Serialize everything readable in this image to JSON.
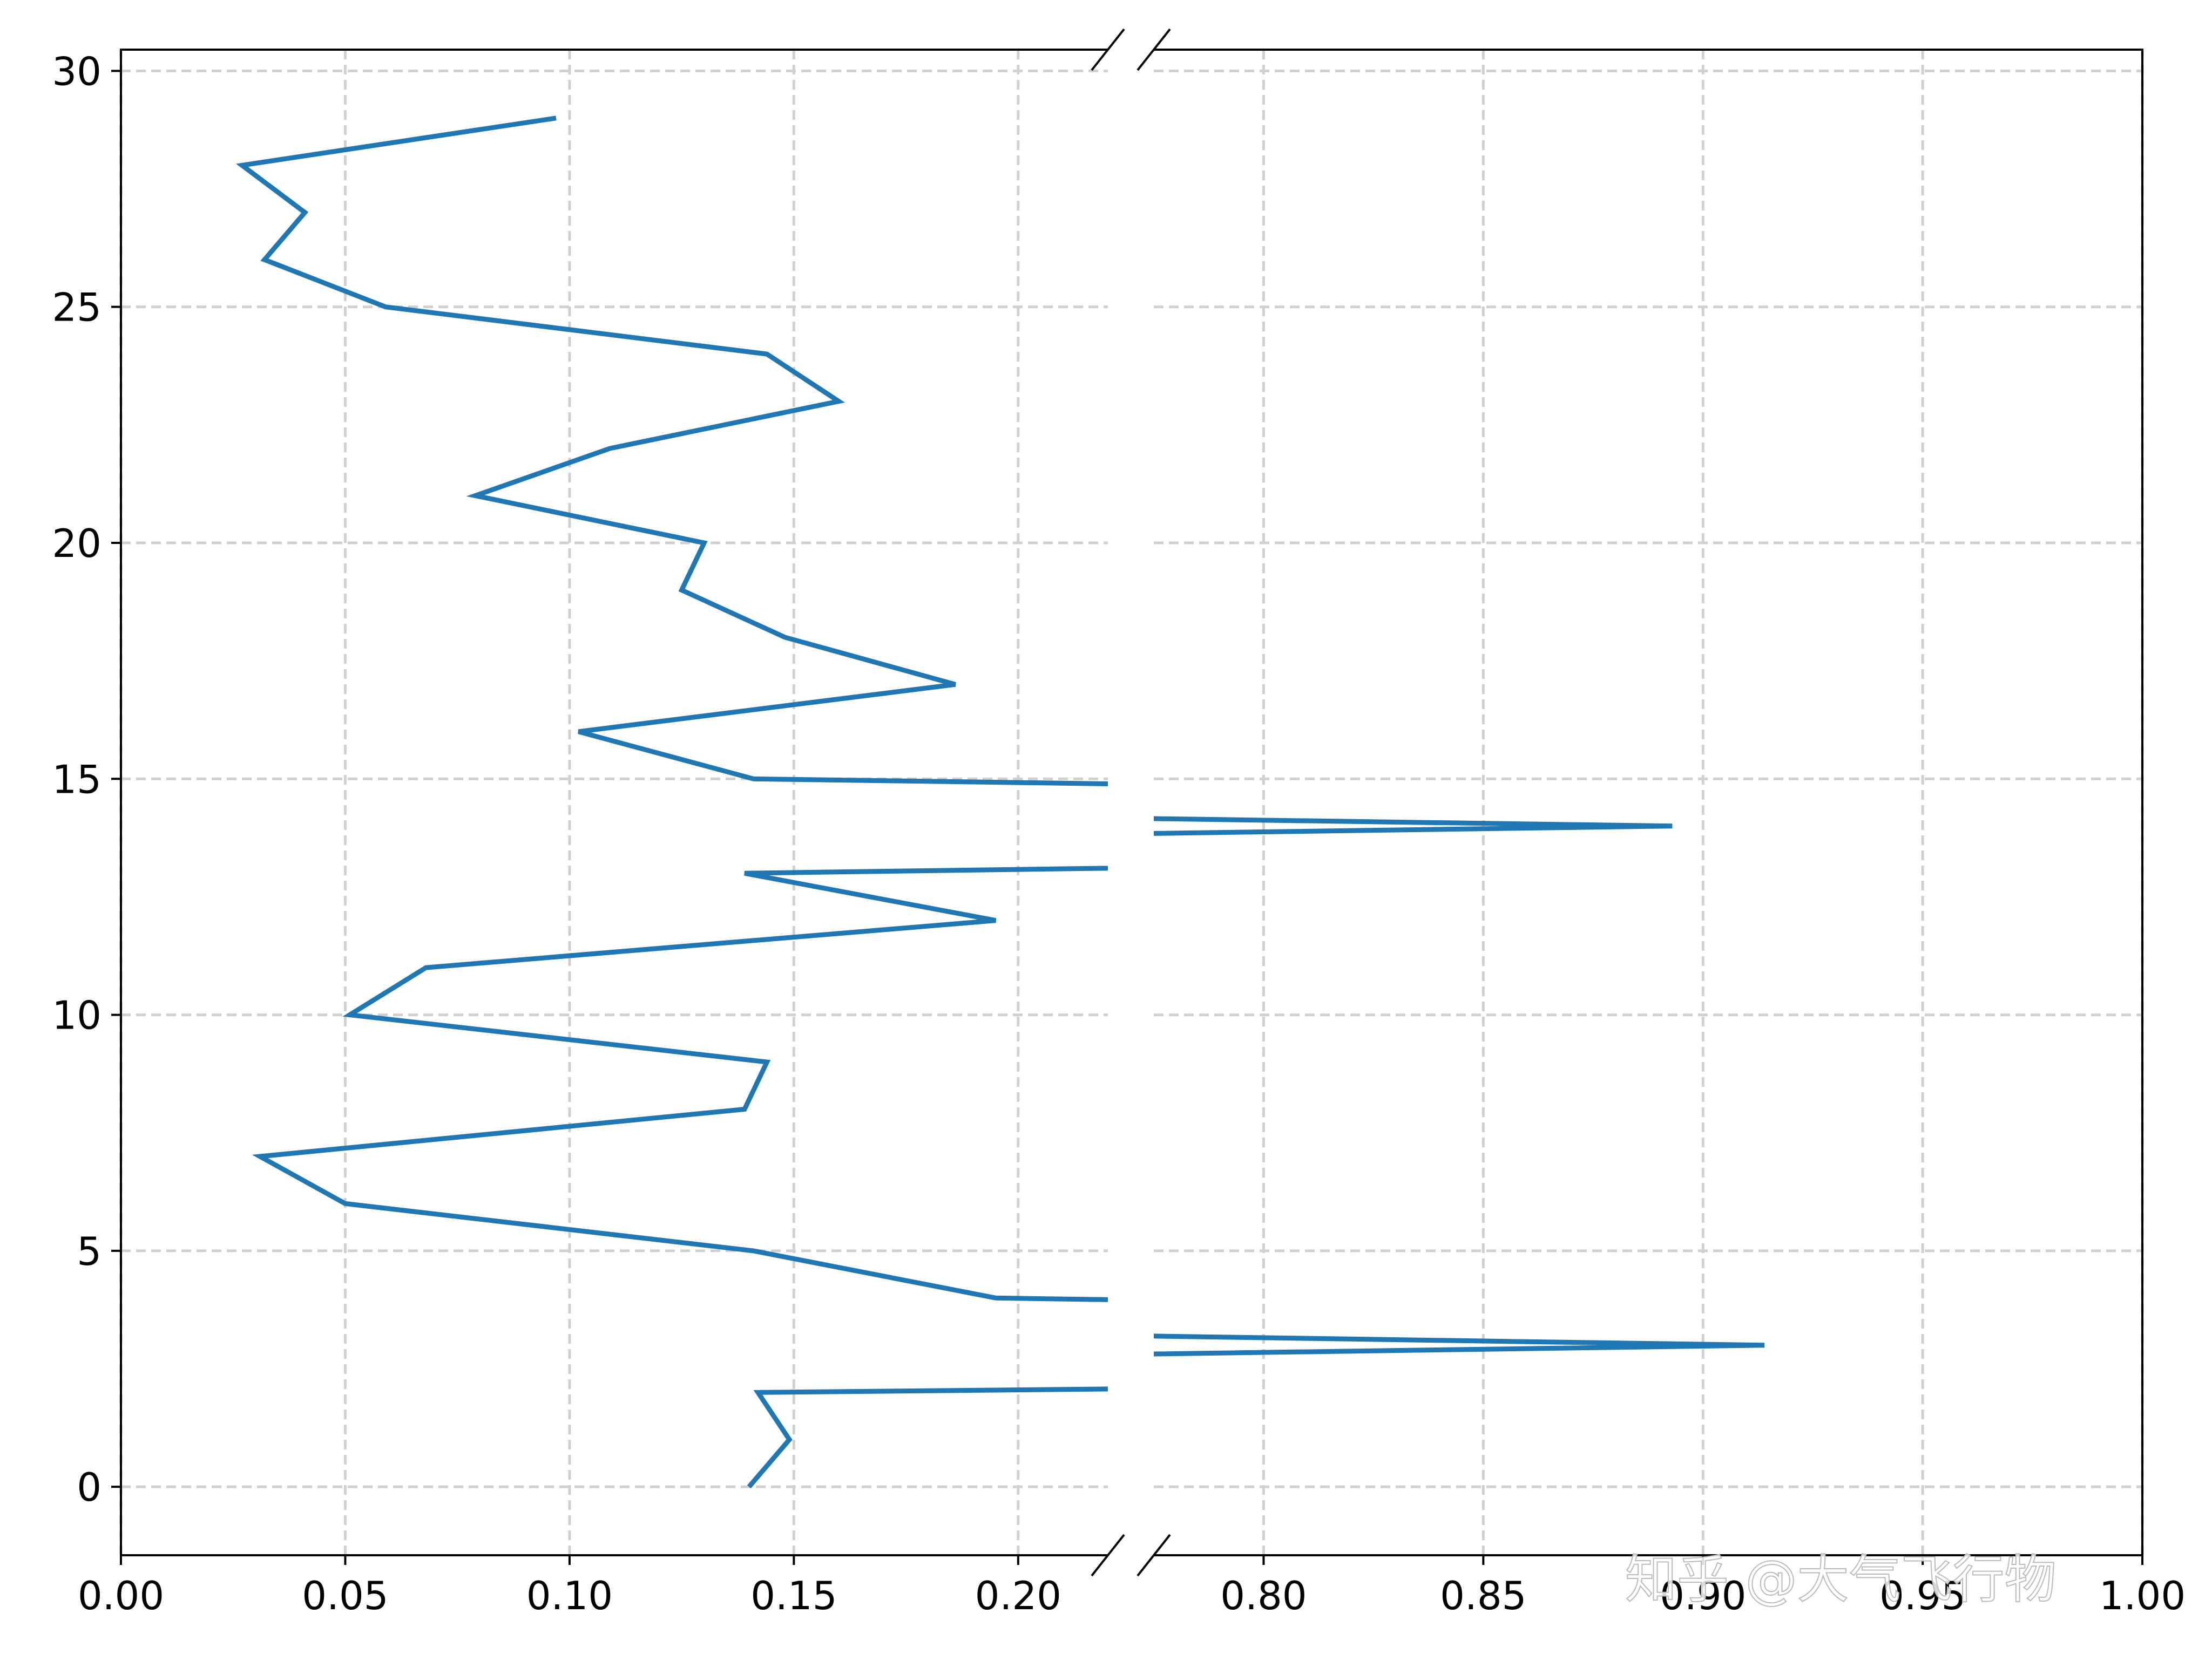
{
  "chart_data": {
    "type": "line",
    "title": "",
    "xlabel": "",
    "ylabel": "",
    "broken_x_axis": true,
    "left_xlim": [
      0.0,
      0.22
    ],
    "right_xlim": [
      0.775,
      1.0
    ],
    "ylim": [
      -1.45,
      30.45
    ],
    "grid": true,
    "x_ticks_left": [
      "0.00",
      "0.05",
      "0.10",
      "0.15",
      "0.20"
    ],
    "x_ticks_right": [
      "0.80",
      "0.85",
      "0.90",
      "0.95",
      "1.00"
    ],
    "y_ticks": [
      "0",
      "5",
      "10",
      "15",
      "20",
      "25",
      "30"
    ],
    "series": [
      {
        "color": "#1f77b4",
        "x": [
          0.14,
          0.149,
          0.142,
          0.218,
          0.914,
          0.195,
          0.141,
          0.05,
          0.031,
          0.139,
          0.144,
          0.051,
          0.068,
          0.195,
          0.139,
          0.215,
          0.893,
          0.141,
          0.102,
          0.186,
          0.148,
          0.125,
          0.13,
          0.079,
          0.109,
          0.16,
          0.144,
          0.059,
          0.032,
          0.041,
          0.027,
          0.097
        ],
        "y": [
          0,
          1,
          2,
          2.07,
          3,
          4,
          5,
          6,
          7,
          8,
          9,
          10,
          11,
          12,
          13,
          13.1,
          14,
          15,
          16,
          17,
          18,
          19,
          20,
          21,
          22,
          23,
          24,
          25,
          26,
          27,
          28,
          29
        ]
      }
    ]
  },
  "watermark": {
    "text": "知乎 @大气飞行物"
  }
}
